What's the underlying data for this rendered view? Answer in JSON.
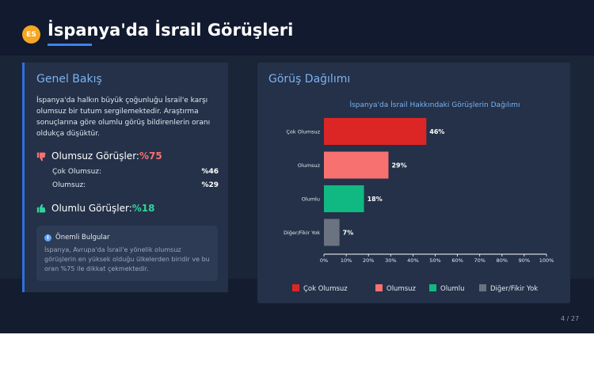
{
  "header": {
    "logo_text": "ES",
    "title": "İspanya'da İsrail Görüşleri"
  },
  "overview": {
    "title": "Genel Bakış",
    "description": "İspanya'da halkın büyük çoğunluğu İsrail'e karşı olumsuz bir tutum sergilemektedir. Araştırma sonuçlarına göre olumlu görüş bildirenlerin oranı oldukça düşüktür.",
    "negative": {
      "icon": "thumbs-down-icon",
      "label": "Olumsuz Görüşler:",
      "value": "%75",
      "items": [
        {
          "label": "Çok Olumsuz:",
          "value": "%46"
        },
        {
          "label": "Olumsuz:",
          "value": "%29"
        }
      ]
    },
    "positive": {
      "icon": "thumbs-up-icon",
      "label": "Olumlu Görüşler:",
      "value": "%18"
    },
    "findings": {
      "icon": "info-icon",
      "title": "Önemli Bulgular",
      "text": "İspanya, Avrupa'da İsrail'e yönelik olumsuz görüşlerin en yüksek olduğu ülkelerden biridir ve bu oran %75 ile dikkat çekmektedir."
    }
  },
  "distribution": {
    "title": "Görüş Dağılımı"
  },
  "chart_data": {
    "type": "bar",
    "orientation": "horizontal",
    "title": "İspanya'da İsrail Hakkındaki Görüşlerin Dağılımı",
    "categories": [
      "Çok Olumsuz",
      "Olumsuz",
      "Olumlu",
      "Diğer/Fikir Yok"
    ],
    "values": [
      46,
      29,
      18,
      7
    ],
    "value_labels": [
      "46%",
      "29%",
      "18%",
      "7%"
    ],
    "colors": [
      "#dc2626",
      "#f87171",
      "#10b981",
      "#6b7280"
    ],
    "xlim": [
      0,
      100
    ],
    "xticks": [
      "0%",
      "10%",
      "20%",
      "30%",
      "40%",
      "50%",
      "60%",
      "70%",
      "80%",
      "90%",
      "100%"
    ],
    "xlabel": "",
    "ylabel": "",
    "grid": false,
    "legend_position": "bottom",
    "legend": [
      "Çok Olumsuz",
      "Olumsuz",
      "Olumlu",
      "Diğer/Fikir Yok"
    ]
  },
  "footer": {
    "page": "4 / 27"
  }
}
